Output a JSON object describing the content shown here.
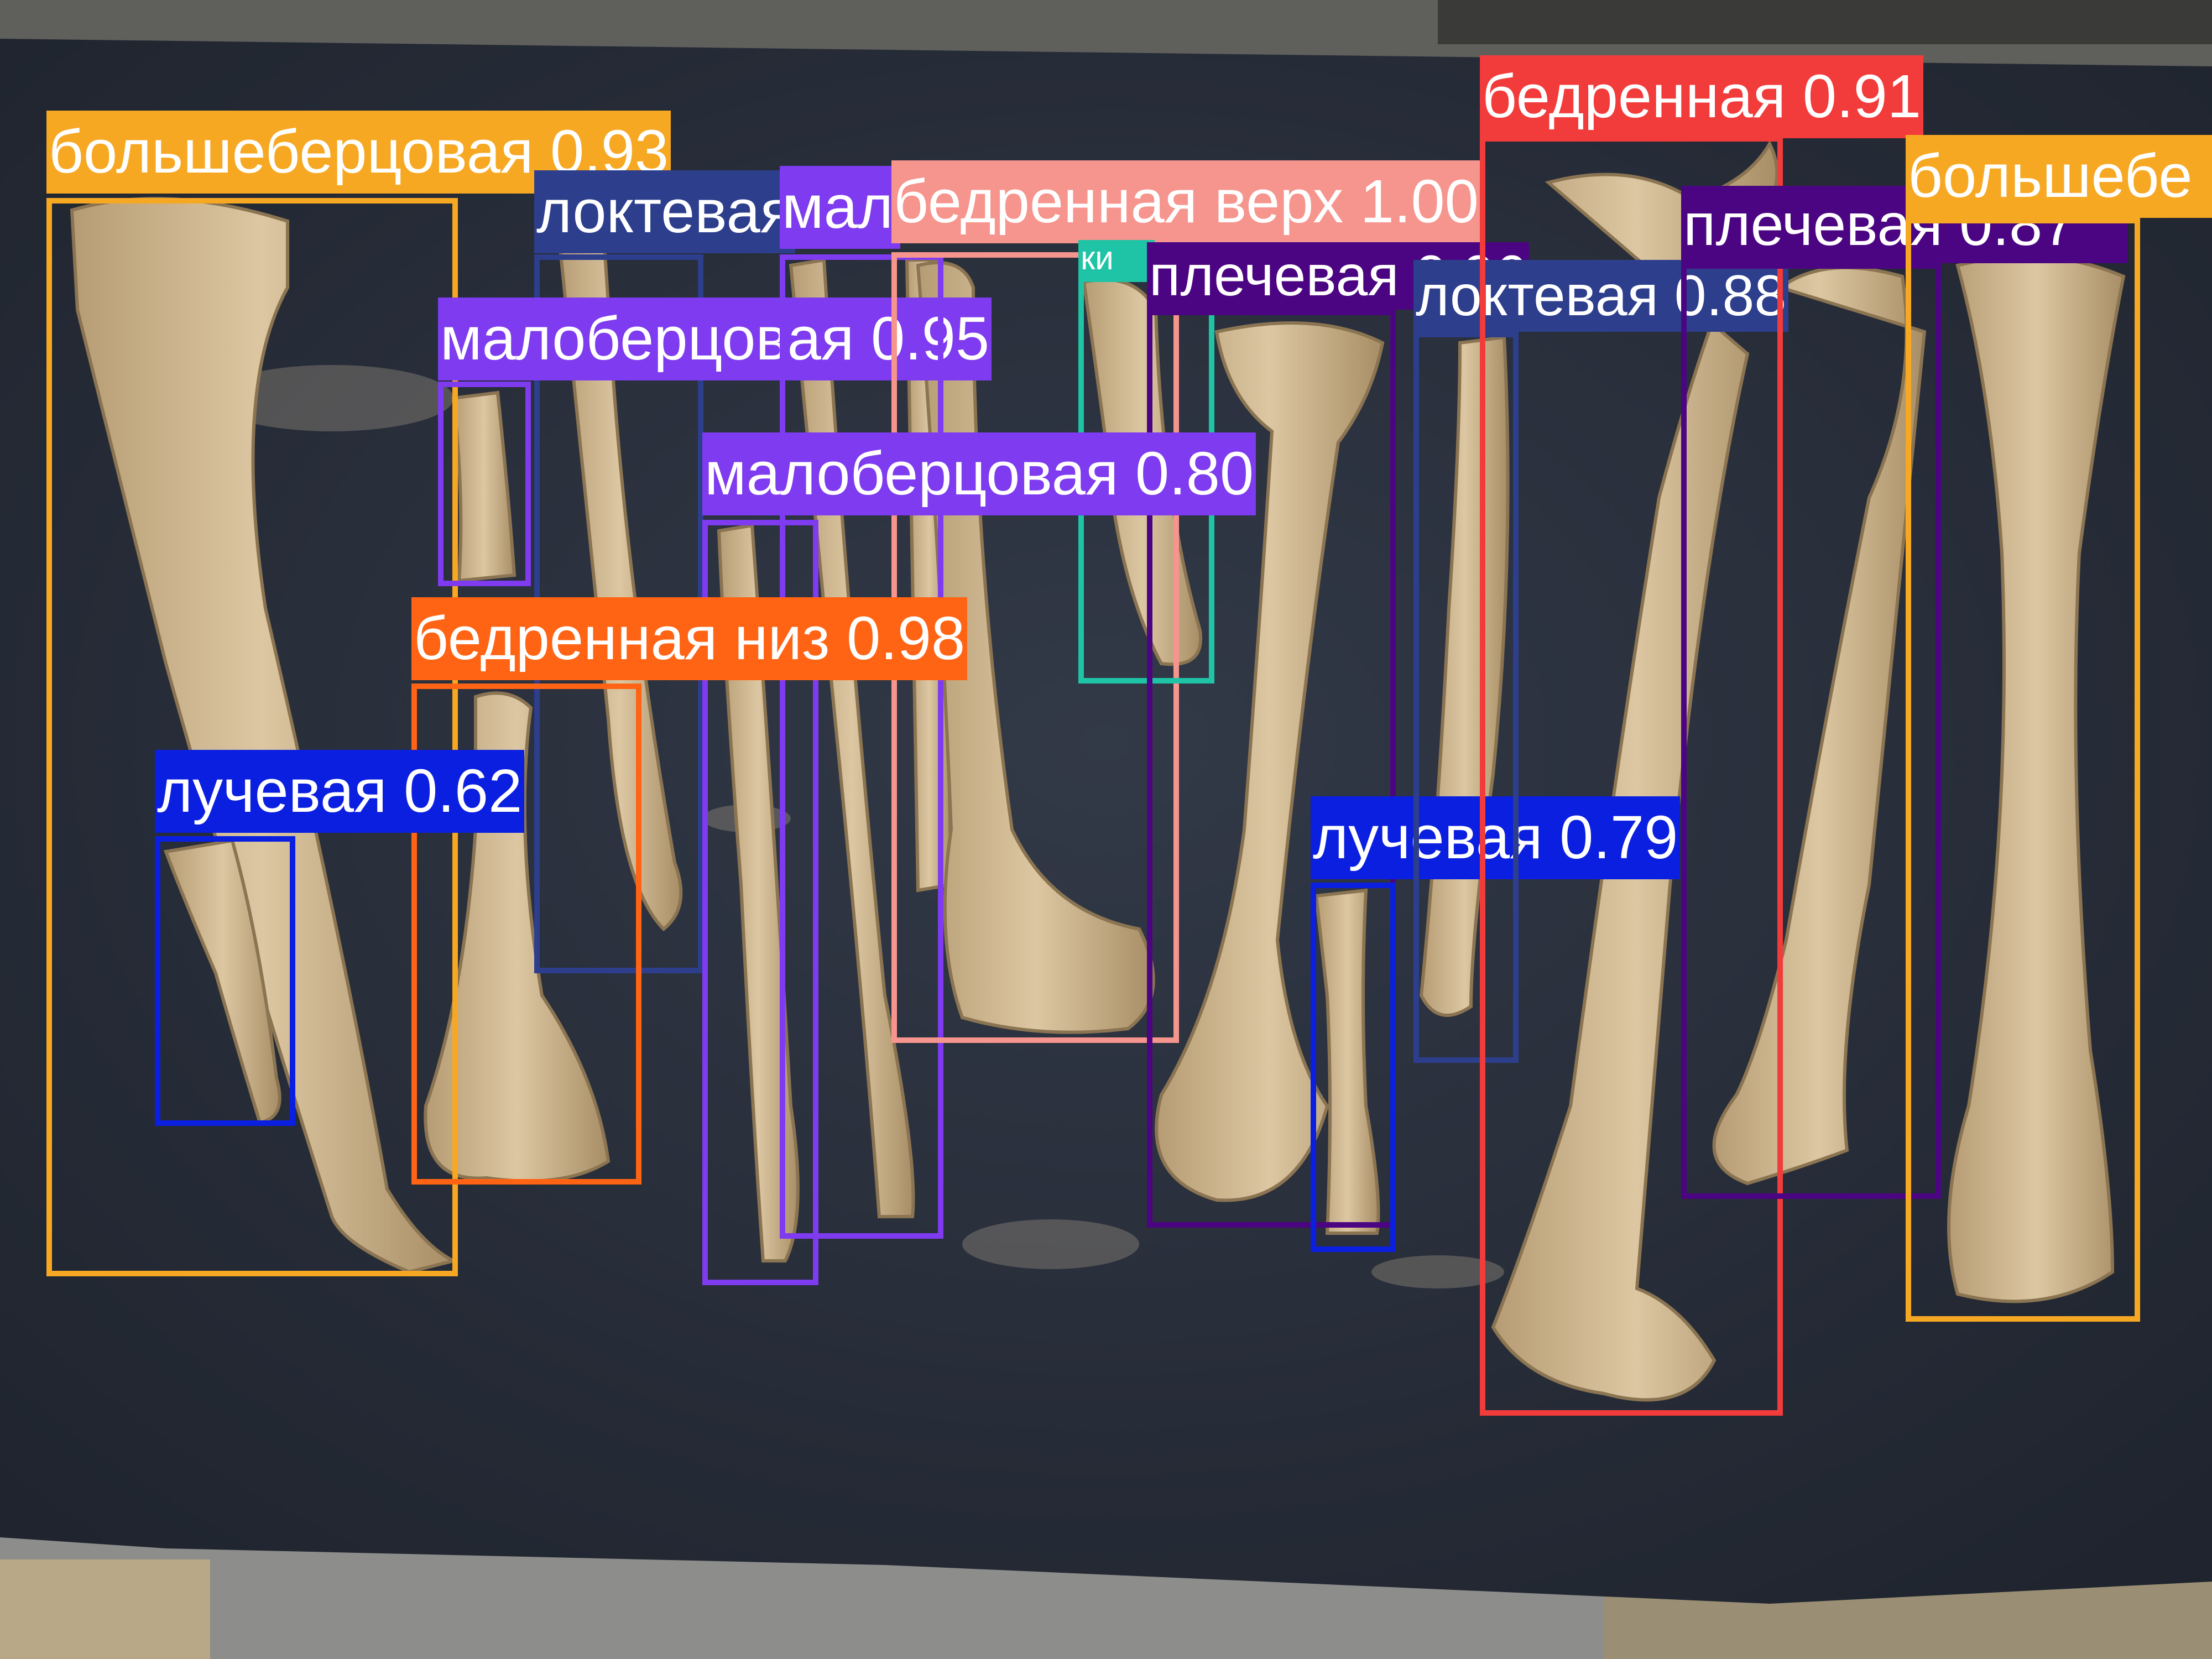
{
  "detections": [
    {
      "label": "большеберцовая 0.93",
      "color": "#f7a823"
    },
    {
      "label": "локтевая",
      "color": "#2d3e8c"
    },
    {
      "label": "малоберцовая 0.95",
      "color": "#7e3bef"
    },
    {
      "label": "мал",
      "color": "#7e3bef"
    },
    {
      "label": "бедренная верх 1.00",
      "color": "#f6958d"
    },
    {
      "label": "ки",
      "color": "#1fc3a5"
    },
    {
      "label": "плечевая 0.96",
      "color": "#4c0582"
    },
    {
      "label": "малоберцовая 0.80",
      "color": "#7e3bef"
    },
    {
      "label": "бедренная низ 0.98",
      "color": "#ff6414"
    },
    {
      "label": "лучевая 0.62",
      "color": "#0b1fe0"
    },
    {
      "label": "лучевая 0.79",
      "color": "#0b1fe0"
    },
    {
      "label": "локтевая 0.88",
      "color": "#2d3e8c"
    },
    {
      "label": "бедренная 0.91",
      "color": "#f23b3b"
    },
    {
      "label": "плечевая 0.87",
      "color": "#4c0582"
    },
    {
      "label": "большебе",
      "color": "#f7a823"
    }
  ]
}
